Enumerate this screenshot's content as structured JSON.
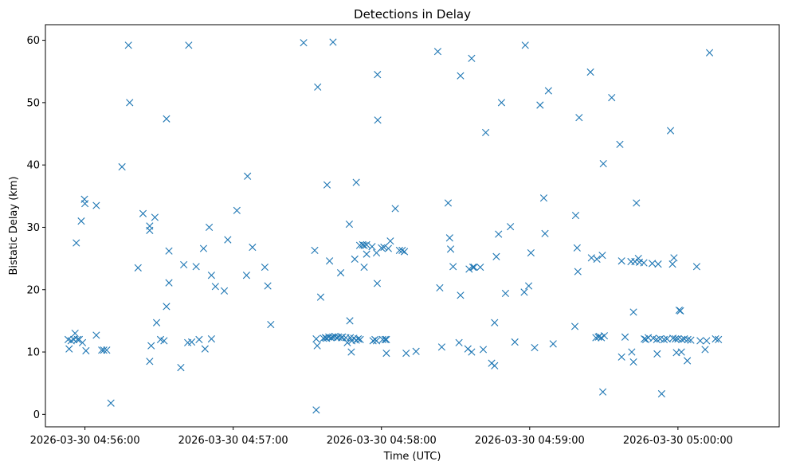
{
  "chart_data": {
    "type": "scatter",
    "title": "Detections in Delay",
    "xlabel": "Time (UTC)",
    "ylabel": "Bistatic Delay (km)",
    "x_unit": "time",
    "xlim": [
      "2026-03-30 04:55:44",
      "2026-03-30 05:00:41"
    ],
    "ylim": [
      -2,
      62.5
    ],
    "x_ticks": [
      "2026-03-30 04:56:00",
      "2026-03-30 04:57:00",
      "2026-03-30 04:58:00",
      "2026-03-30 04:59:00",
      "2026-03-30 05:00:00"
    ],
    "y_ticks": [
      0,
      10,
      20,
      30,
      40,
      50,
      60
    ],
    "grid": false,
    "marker": "x",
    "color": "#1f77b4",
    "points": [
      [
        "04:55:53.2",
        12.0
      ],
      [
        "04:55:53.6",
        10.5
      ],
      [
        "04:55:54.4",
        11.8
      ],
      [
        "04:55:55.5",
        12.0
      ],
      [
        "04:55:56.0",
        13.0
      ],
      [
        "04:55:56.5",
        27.5
      ],
      [
        "04:55:57.0",
        12.0
      ],
      [
        "04:55:57.7",
        12.0
      ],
      [
        "04:55:58.5",
        31.0
      ],
      [
        "04:55:59.0",
        11.5
      ],
      [
        "04:55:59.8",
        34.5
      ],
      [
        "04:56:00.0",
        33.8
      ],
      [
        "04:56:00.4",
        10.2
      ],
      [
        "04:56:04.6",
        12.7
      ],
      [
        "04:56:04.6",
        33.5
      ],
      [
        "04:56:06.8",
        10.3
      ],
      [
        "04:56:07.6",
        10.3
      ],
      [
        "04:56:08.8",
        10.3
      ],
      [
        "04:56:10.5",
        1.8
      ],
      [
        "04:56:15.0",
        39.7
      ],
      [
        "04:56:17.6",
        59.2
      ],
      [
        "04:56:18.1",
        50.0
      ],
      [
        "04:56:21.5",
        23.5
      ],
      [
        "04:56:23.5",
        32.2
      ],
      [
        "04:56:26.2",
        8.5
      ],
      [
        "04:56:26.2",
        30.2
      ],
      [
        "04:56:26.2",
        29.5
      ],
      [
        "04:56:26.8",
        11.0
      ],
      [
        "04:56:28.3",
        31.6
      ],
      [
        "04:56:29.0",
        14.7
      ],
      [
        "04:56:30.6",
        12.0
      ],
      [
        "04:56:32.0",
        11.8
      ],
      [
        "04:56:33.0",
        17.3
      ],
      [
        "04:56:33.0",
        47.4
      ],
      [
        "04:56:34.0",
        26.2
      ],
      [
        "04:56:34.0",
        21.1
      ],
      [
        "04:56:38.8",
        7.5
      ],
      [
        "04:56:40.0",
        24.0
      ],
      [
        "04:56:41.6",
        11.5
      ],
      [
        "04:56:42.0",
        59.2
      ],
      [
        "04:56:43.2",
        11.6
      ],
      [
        "04:56:45.0",
        23.7
      ],
      [
        "04:56:46.2",
        12.0
      ],
      [
        "04:56:48.0",
        26.6
      ],
      [
        "04:56:48.6",
        10.5
      ],
      [
        "04:56:50.3",
        30.0
      ],
      [
        "04:56:51.2",
        22.3
      ],
      [
        "04:56:51.2",
        12.1
      ],
      [
        "04:56:52.8",
        20.5
      ],
      [
        "04:56:56.4",
        19.8
      ],
      [
        "04:56:57.8",
        28.0
      ],
      [
        "04:57:01.5",
        32.7
      ],
      [
        "04:57:05.4",
        22.3
      ],
      [
        "04:57:05.8",
        38.2
      ],
      [
        "04:57:07.8",
        26.8
      ],
      [
        "04:57:12.8",
        23.6
      ],
      [
        "04:57:14.0",
        20.6
      ],
      [
        "04:57:15.2",
        14.4
      ],
      [
        "04:57:28.5",
        59.6
      ],
      [
        "04:57:33.0",
        26.3
      ],
      [
        "04:57:33.6",
        0.7
      ],
      [
        "04:57:33.6",
        12.1
      ],
      [
        "04:57:34.0",
        11.0
      ],
      [
        "04:57:34.2",
        52.5
      ],
      [
        "04:57:35.4",
        18.8
      ],
      [
        "04:57:36.5",
        12.2
      ],
      [
        "04:57:37.3",
        12.3
      ],
      [
        "04:57:37.8",
        12.2
      ],
      [
        "04:57:38.0",
        36.8
      ],
      [
        "04:57:38.7",
        12.4
      ],
      [
        "04:57:39.0",
        24.6
      ],
      [
        "04:57:39.6",
        12.3
      ],
      [
        "04:57:40.3",
        12.4
      ],
      [
        "04:57:40.4",
        59.7
      ],
      [
        "04:57:41.2",
        12.5
      ],
      [
        "04:57:42.0",
        12.3
      ],
      [
        "04:57:42.6",
        12.4
      ],
      [
        "04:57:43.5",
        22.7
      ],
      [
        "04:57:43.8",
        12.3
      ],
      [
        "04:57:44.2",
        12.4
      ],
      [
        "04:57:45.6",
        12.3
      ],
      [
        "04:57:46.2",
        11.5
      ],
      [
        "04:57:47.0",
        30.5
      ],
      [
        "04:57:47.2",
        15.0
      ],
      [
        "04:57:47.4",
        12.3
      ],
      [
        "04:57:47.8",
        10.0
      ],
      [
        "04:57:48.0",
        11.8
      ],
      [
        "04:57:48.8",
        12.2
      ],
      [
        "04:57:49.2",
        24.9
      ],
      [
        "04:57:49.8",
        37.2
      ],
      [
        "04:57:49.8",
        11.9
      ],
      [
        "04:57:50.6",
        12.1
      ],
      [
        "04:57:51.2",
        27.1
      ],
      [
        "04:57:51.4",
        12.0
      ],
      [
        "04:57:52.4",
        27.2
      ],
      [
        "04:57:53.0",
        23.6
      ],
      [
        "04:57:53.0",
        27.1
      ],
      [
        "04:57:54.0",
        25.7
      ],
      [
        "04:57:54.0",
        27.2
      ],
      [
        "04:57:56.2",
        26.9
      ],
      [
        "04:57:56.6",
        11.8
      ],
      [
        "04:57:57.4",
        12.0
      ],
      [
        "04:57:58.0",
        25.9
      ],
      [
        "04:57:58.0",
        11.8
      ],
      [
        "04:57:58.3",
        21.0
      ],
      [
        "04:57:58.4",
        54.5
      ],
      [
        "04:57:58.5",
        47.2
      ],
      [
        "04:58:00.0",
        26.7
      ],
      [
        "04:58:00.5",
        12.0
      ],
      [
        "04:58:01.0",
        26.8
      ],
      [
        "04:58:01.5",
        12.0
      ],
      [
        "04:58:02.0",
        12.0
      ],
      [
        "04:58:02.0",
        9.8
      ],
      [
        "04:58:02.8",
        26.6
      ],
      [
        "04:58:03.6",
        27.8
      ],
      [
        "04:58:05.6",
        33.0
      ],
      [
        "04:58:07.3",
        26.3
      ],
      [
        "04:58:08.4",
        26.3
      ],
      [
        "04:58:09.3",
        26.1
      ],
      [
        "04:58:10.0",
        9.8
      ],
      [
        "04:58:14.0",
        10.1
      ],
      [
        "04:58:22.8",
        58.2
      ],
      [
        "04:58:23.6",
        20.3
      ],
      [
        "04:58:24.4",
        10.8
      ],
      [
        "04:58:27.0",
        33.9
      ],
      [
        "04:58:27.6",
        28.3
      ],
      [
        "04:58:28.0",
        26.5
      ],
      [
        "04:58:29.0",
        23.7
      ],
      [
        "04:58:31.4",
        11.5
      ],
      [
        "04:58:32.0",
        54.3
      ],
      [
        "04:58:32.0",
        19.1
      ],
      [
        "04:58:35.0",
        10.5
      ],
      [
        "04:58:35.5",
        23.3
      ],
      [
        "04:58:36.5",
        57.1
      ],
      [
        "04:58:36.5",
        10.0
      ],
      [
        "04:58:37.0",
        23.6
      ],
      [
        "04:58:37.5",
        23.6
      ],
      [
        "04:58:40.0",
        23.6
      ],
      [
        "04:58:41.2",
        10.4
      ],
      [
        "04:58:42.2",
        45.2
      ],
      [
        "04:58:44.6",
        8.2
      ],
      [
        "04:58:45.8",
        14.7
      ],
      [
        "04:58:45.8",
        7.8
      ],
      [
        "04:58:46.5",
        25.3
      ],
      [
        "04:58:47.4",
        28.9
      ],
      [
        "04:58:48.6",
        50.0
      ],
      [
        "04:58:50.2",
        19.4
      ],
      [
        "04:58:52.2",
        30.1
      ],
      [
        "04:58:54.0",
        11.6
      ],
      [
        "04:58:57.8",
        19.6
      ],
      [
        "04:58:58.2",
        59.2
      ],
      [
        "04:58:59.6",
        20.6
      ],
      [
        "04:59:00.5",
        25.9
      ],
      [
        "04:59:02.0",
        10.7
      ],
      [
        "04:59:04.2",
        49.6
      ],
      [
        "04:59:05.7",
        34.7
      ],
      [
        "04:59:06.2",
        29.0
      ],
      [
        "04:59:07.6",
        51.9
      ],
      [
        "04:59:09.5",
        11.3
      ],
      [
        "04:59:18.3",
        14.1
      ],
      [
        "04:59:18.6",
        31.9
      ],
      [
        "04:59:19.2",
        26.7
      ],
      [
        "04:59:19.5",
        22.9
      ],
      [
        "04:59:20.0",
        47.6
      ],
      [
        "04:59:24.6",
        54.9
      ],
      [
        "04:59:25.0",
        25.1
      ],
      [
        "04:59:26.8",
        12.3
      ],
      [
        "04:59:27.2",
        24.9
      ],
      [
        "04:59:27.8",
        12.4
      ],
      [
        "04:59:28.2",
        12.5
      ],
      [
        "04:59:29.0",
        12.3
      ],
      [
        "04:59:29.4",
        25.5
      ],
      [
        "04:59:29.6",
        3.6
      ],
      [
        "04:59:29.8",
        40.2
      ],
      [
        "04:59:30.2",
        12.6
      ],
      [
        "04:59:33.2",
        50.8
      ],
      [
        "04:59:36.5",
        43.3
      ],
      [
        "04:59:37.2",
        24.6
      ],
      [
        "04:59:37.2",
        9.2
      ],
      [
        "04:59:38.6",
        12.4
      ],
      [
        "04:59:41.0",
        24.5
      ],
      [
        "04:59:41.3",
        10.0
      ],
      [
        "04:59:42.0",
        16.4
      ],
      [
        "04:59:42.0",
        8.4
      ],
      [
        "04:59:42.6",
        24.5
      ],
      [
        "04:59:43.2",
        33.9
      ],
      [
        "04:59:44.0",
        25.0
      ],
      [
        "04:59:44.4",
        24.4
      ],
      [
        "04:59:46.2",
        24.3
      ],
      [
        "04:59:46.4",
        12.1
      ],
      [
        "04:59:47.0",
        12.0
      ],
      [
        "04:59:48.0",
        12.3
      ],
      [
        "04:59:49.6",
        24.2
      ],
      [
        "04:59:50.0",
        12.2
      ],
      [
        "04:59:51.4",
        12.0
      ],
      [
        "04:59:51.6",
        9.7
      ],
      [
        "04:59:52.0",
        24.1
      ],
      [
        "04:59:52.8",
        12.1
      ],
      [
        "04:59:53.4",
        3.3
      ],
      [
        "04:59:54.4",
        12.0
      ],
      [
        "04:59:55.6",
        12.1
      ],
      [
        "04:59:57.0",
        45.5
      ],
      [
        "04:59:57.8",
        24.1
      ],
      [
        "04:59:58.0",
        12.2
      ],
      [
        "04:59:58.4",
        25.1
      ],
      [
        "04:59:59.0",
        12.1
      ],
      [
        "04:59:59.4",
        9.9
      ],
      [
        "05:00:00.0",
        12.1
      ],
      [
        "05:00:00.5",
        16.7
      ],
      [
        "05:00:01.0",
        16.6
      ],
      [
        "05:00:01.4",
        10.0
      ],
      [
        "05:00:01.6",
        12.0
      ],
      [
        "05:00:02.6",
        12.1
      ],
      [
        "05:00:03.8",
        8.6
      ],
      [
        "05:00:04.0",
        12.0
      ],
      [
        "05:00:05.2",
        11.9
      ],
      [
        "05:00:07.6",
        23.7
      ],
      [
        "05:00:09.0",
        11.8
      ],
      [
        "05:00:11.0",
        10.4
      ],
      [
        "05:00:11.6",
        11.8
      ],
      [
        "05:00:12.8",
        58.0
      ],
      [
        "05:00:15.2",
        12.1
      ],
      [
        "05:00:16.4",
        12.0
      ]
    ]
  }
}
